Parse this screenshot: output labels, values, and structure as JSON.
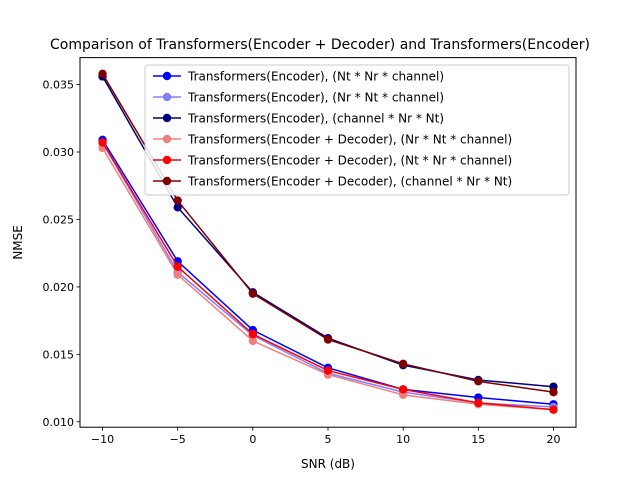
{
  "chart_data": {
    "type": "line",
    "title": "Comparison of Transformers(Encoder + Decoder)  and Transformers(Encoder)",
    "xlabel": "SNR (dB)",
    "ylabel": "NMSE",
    "x": [
      -10,
      -5,
      0,
      5,
      10,
      15,
      20
    ],
    "xlim": [
      -11.5,
      21.5
    ],
    "ylim": [
      0.0096,
      0.037
    ],
    "xticks": [
      -10,
      -5,
      0,
      5,
      10,
      15,
      20
    ],
    "xtick_labels": [
      "−10",
      "−5",
      "0",
      "5",
      "10",
      "15",
      "20"
    ],
    "yticks": [
      0.01,
      0.015,
      0.02,
      0.025,
      0.03,
      0.035
    ],
    "ytick_labels": [
      "0.010",
      "0.015",
      "0.020",
      "0.025",
      "0.030",
      "0.035"
    ],
    "grid": false,
    "legend_position": "top-right",
    "series": [
      {
        "name": "Transformers(Encoder), (Nt * Nr * channel)",
        "color": "#0000ff",
        "values": [
          0.0309,
          0.0219,
          0.0168,
          0.014,
          0.0124,
          0.0118,
          0.0113
        ]
      },
      {
        "name": "Transformers(Encoder), (Nr * Nt * channel)",
        "color": "#8080ff",
        "values": [
          0.0307,
          0.0211,
          0.0164,
          0.0136,
          0.0122,
          0.0114,
          0.0111
        ]
      },
      {
        "name": "Transformers(Encoder), (channel * Nr * Nt)",
        "color": "#000080",
        "values": [
          0.0356,
          0.0259,
          0.0196,
          0.0162,
          0.0142,
          0.0131,
          0.0126
        ]
      },
      {
        "name": "Transformers(Encoder + Decoder), (Nr * Nt * channel)",
        "color": "#f08080",
        "values": [
          0.0303,
          0.0209,
          0.016,
          0.0135,
          0.012,
          0.0113,
          0.0109
        ]
      },
      {
        "name": "Transformers(Encoder + Decoder), (Nt * Nr * channel)",
        "color": "#ff0000",
        "values": [
          0.0307,
          0.0215,
          0.0165,
          0.0138,
          0.0124,
          0.0114,
          0.0109
        ]
      },
      {
        "name": "Transformers(Encoder + Decoder), (channel * Nr * Nt)",
        "color": "#800000",
        "values": [
          0.0358,
          0.0264,
          0.0195,
          0.0161,
          0.0143,
          0.013,
          0.0122
        ]
      }
    ]
  }
}
